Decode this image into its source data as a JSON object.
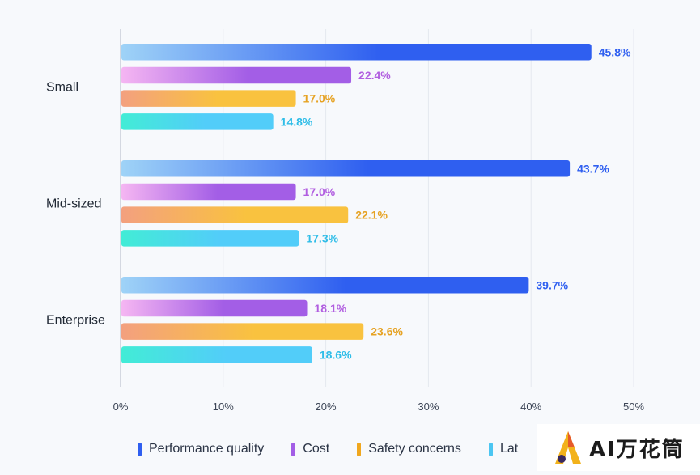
{
  "chart_data": {
    "type": "bar",
    "orientation": "horizontal",
    "categories": [
      "Small",
      "Mid-sized",
      "Enterprise"
    ],
    "series": [
      {
        "name": "Performance quality",
        "values": [
          45.8,
          43.7,
          39.7
        ],
        "labels": [
          "45.8%",
          "43.7%",
          "39.7%"
        ],
        "color": "#2f5ff0",
        "start_color": "#9fd3f7",
        "label_color": "#2f5ff0"
      },
      {
        "name": "Cost",
        "values": [
          22.4,
          17.0,
          18.1
        ],
        "labels": [
          "22.4%",
          "17.0%",
          "18.1%"
        ],
        "color": "#a35ee6",
        "start_color": "#f5b6f2",
        "label_color": "#b15ee0"
      },
      {
        "name": "Safety concerns",
        "values": [
          17.0,
          22.1,
          23.6
        ],
        "labels": [
          "17.0%",
          "22.1%",
          "23.6%"
        ],
        "color": "#f9c23f",
        "start_color": "#f3a07f",
        "label_color": "#e6a222"
      },
      {
        "name": "Latency",
        "values": [
          14.8,
          17.3,
          18.6
        ],
        "labels": [
          "14.8%",
          "17.3%",
          "18.6%"
        ],
        "color": "#52cdf9",
        "start_color": "#42ecd6",
        "label_color": "#2fbde8"
      }
    ],
    "xlim": [
      0,
      50
    ],
    "xticks": [
      0,
      10,
      20,
      30,
      40,
      50
    ],
    "xtick_labels": [
      "0%",
      "10%",
      "20%",
      "30%",
      "40%",
      "50%"
    ],
    "grid": "vertical",
    "legend_position": "bottom"
  },
  "legend": {
    "items": [
      {
        "label": "Performance quality",
        "color": "#2f5ff0"
      },
      {
        "label": "Cost",
        "color": "#a35ee6"
      },
      {
        "label": "Safety concerns",
        "color": "#f0a71e"
      },
      {
        "label": "Lat",
        "color": "#4cc6f2"
      }
    ]
  },
  "watermark": {
    "text": "AI万花筒"
  }
}
